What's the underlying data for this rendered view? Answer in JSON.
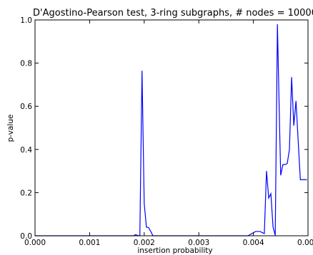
{
  "chart_data": {
    "type": "line",
    "title": "D'Agostino-Pearson test, 3-ring subgraphs, # nodes = 10000",
    "xlabel": "insertion probability",
    "ylabel": "p-value",
    "xlim": [
      0.0,
      0.005
    ],
    "ylim": [
      0.0,
      1.0
    ],
    "xticks": [
      "0.000",
      "0.001",
      "0.002",
      "0.003",
      "0.004",
      "0.005"
    ],
    "yticks": [
      "0.0",
      "0.2",
      "0.4",
      "0.6",
      "0.8",
      "1.0"
    ],
    "grid": false,
    "legend": "none",
    "series": [
      {
        "color": "#0000ff",
        "x": [
          0.0,
          0.0005,
          0.001,
          0.0015,
          0.0017,
          0.0018,
          0.00184,
          0.00188,
          0.0019,
          0.00192,
          0.00196,
          0.002,
          0.00204,
          0.00208,
          0.00212,
          0.00216,
          0.0022,
          0.0025,
          0.003,
          0.0035,
          0.0039,
          0.00404,
          0.00412,
          0.0042,
          0.00424,
          0.00428,
          0.00432,
          0.00436,
          0.0044,
          0.00444,
          0.00448,
          0.0045,
          0.00454,
          0.00458,
          0.00462,
          0.00466,
          0.0047,
          0.00474,
          0.00478,
          0.00482,
          0.00486,
          0.0049,
          0.00494,
          0.00498
        ],
        "y": [
          0.0,
          0.0,
          0.0,
          0.0,
          0.0,
          0.0,
          0.005,
          0.002,
          0.0,
          0.0,
          0.765,
          0.15,
          0.04,
          0.038,
          0.02,
          0.0,
          0.0,
          0.0,
          0.0,
          0.0,
          0.0,
          0.02,
          0.02,
          0.01,
          0.3,
          0.175,
          0.195,
          0.04,
          0.002,
          0.98,
          0.5,
          0.28,
          0.33,
          0.33,
          0.335,
          0.4,
          0.735,
          0.51,
          0.625,
          0.44,
          0.26,
          0.26,
          0.26,
          0.26
        ]
      }
    ]
  }
}
